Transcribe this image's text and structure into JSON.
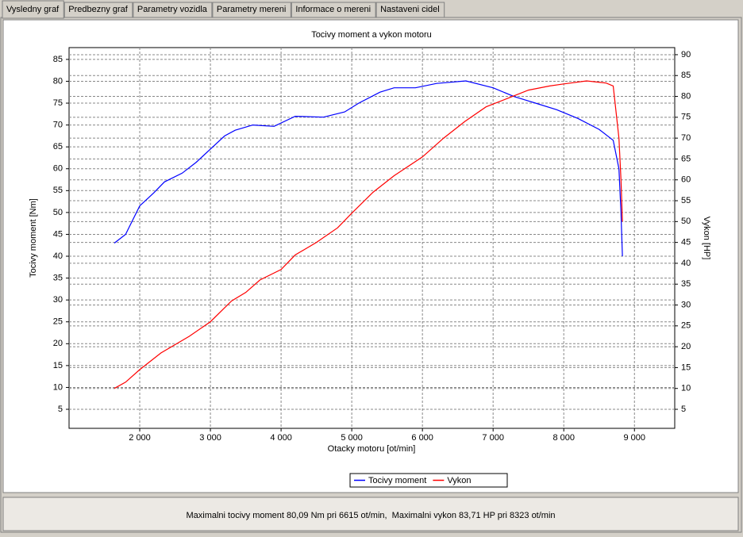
{
  "tabs": [
    "Vysledny graf",
    "Predbezny graf",
    "Parametry vozidla",
    "Parametry mereni",
    "Informace o mereni",
    "Nastaveni cidel"
  ],
  "chart_data": {
    "type": "line",
    "title": "Tocivy moment a vykon motoru",
    "x_label": "Otacky motoru [ot/min]",
    "y_label": "Tocivy moment [Nm]",
    "y2_label": "Vykon [HP]",
    "xlim": [
      1000,
      9570
    ],
    "ylim": [
      0.65,
      87.7
    ],
    "y2lim": [
      0.44,
      91.7
    ],
    "grid": true,
    "xticks": [
      {
        "value": 2000,
        "label": "2 000"
      },
      {
        "value": 3000,
        "label": "3 000"
      },
      {
        "value": 4000,
        "label": "4 000"
      },
      {
        "value": 5000,
        "label": "5 000"
      },
      {
        "value": 6000,
        "label": "6 000"
      },
      {
        "value": 7000,
        "label": "7 000"
      },
      {
        "value": 8000,
        "label": "8 000"
      },
      {
        "value": 9000,
        "label": "9 000"
      }
    ],
    "yticks": [
      5,
      10,
      15,
      20,
      25,
      30,
      35,
      40,
      45,
      50,
      55,
      60,
      65,
      70,
      75,
      80,
      85
    ],
    "y2ticks": [
      5,
      10,
      15,
      20,
      25,
      30,
      35,
      40,
      45,
      50,
      55,
      60,
      65,
      70,
      75,
      80,
      85,
      90
    ],
    "series": [
      {
        "name": "Tocivy moment",
        "color": "#0000ff",
        "x": [
          1640,
          1800,
          2000,
          2200,
          2350,
          2600,
          2800,
          3000,
          3200,
          3350,
          3600,
          3900,
          4200,
          4600,
          4900,
          5100,
          5400,
          5600,
          5900,
          6200,
          6615,
          7000,
          7300,
          7600,
          7900,
          8200,
          8500,
          8700,
          8780,
          8810,
          8830
        ],
        "values": [
          43,
          45,
          51.5,
          54.5,
          57,
          59,
          61.5,
          64.5,
          67.5,
          68.8,
          70,
          69.7,
          72,
          71.8,
          73,
          75,
          77.5,
          78.5,
          78.5,
          79.5,
          80.09,
          78.5,
          76.5,
          75,
          73.5,
          71.5,
          69,
          66.5,
          60,
          50,
          40
        ]
      },
      {
        "name": "Vykon",
        "color": "#ff0000",
        "axis": "y2",
        "x": [
          1640,
          1800,
          2000,
          2300,
          2700,
          3000,
          3300,
          3500,
          3700,
          4000,
          4200,
          4500,
          4800,
          5000,
          5300,
          5600,
          6000,
          6300,
          6600,
          6900,
          7200,
          7500,
          7800,
          8000,
          8323,
          8600,
          8700,
          8780,
          8810,
          8830
        ],
        "values": [
          10,
          11.5,
          14.5,
          18.5,
          22.5,
          26,
          31,
          33,
          36,
          38.5,
          42,
          45,
          48.5,
          52,
          57,
          61,
          65.5,
          70,
          74,
          77.5,
          79.5,
          81.5,
          82.5,
          83,
          83.71,
          83.2,
          82.5,
          70,
          60,
          50
        ]
      }
    ]
  },
  "footer": "Maximalni tocivy moment 80,09 Nm pri 6615 ot/min,  Maximalni vykon 83,71 HP pri 8323 ot/min"
}
